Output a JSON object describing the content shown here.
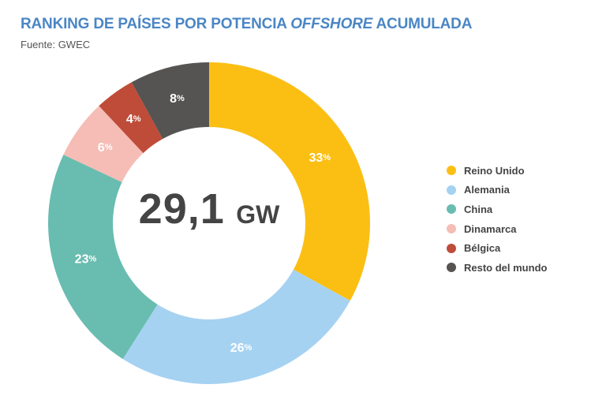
{
  "title": {
    "prefix": "RANKING DE PAÍSES POR POTENCIA ",
    "emphasis": "OFFSHORE",
    "suffix": " ACUMULADA"
  },
  "source": "Fuente: GWEC",
  "center": {
    "value": "29,1",
    "unit": "GW"
  },
  "chart_data": {
    "type": "pie",
    "title": "RANKING DE PAÍSES POR POTENCIA OFFSHORE ACUMULADA",
    "total_label": "29,1 GW",
    "unit": "%",
    "legend_position": "right",
    "series": [
      {
        "name": "Reino Unido",
        "value": 33,
        "color": "#fbbf14"
      },
      {
        "name": "Alemania",
        "value": 26,
        "color": "#a6d2f2"
      },
      {
        "name": "China",
        "value": 23,
        "color": "#69bcb0"
      },
      {
        "name": "Dinamarca",
        "value": 6,
        "color": "#f5bdb5"
      },
      {
        "name": "Bélgica",
        "value": 4,
        "color": "#bf4c39"
      },
      {
        "name": "Resto del mundo",
        "value": 8,
        "color": "#555452"
      }
    ]
  }
}
